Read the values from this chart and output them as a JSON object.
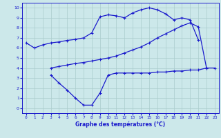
{
  "title": "Graphe des températures (°C)",
  "bg_color": "#cce8ea",
  "grid_color": "#aacccc",
  "line_color": "#1a1acc",
  "xlim": [
    -0.5,
    23.5
  ],
  "ylim": [
    -0.5,
    10.5
  ],
  "yticks": [
    0,
    1,
    2,
    3,
    4,
    5,
    6,
    7,
    8,
    9,
    10
  ],
  "xticks": [
    0,
    1,
    2,
    3,
    4,
    5,
    6,
    7,
    8,
    9,
    10,
    11,
    12,
    13,
    14,
    15,
    16,
    17,
    18,
    19,
    20,
    21,
    22,
    23
  ],
  "curve_top_x": [
    0,
    1,
    2,
    3,
    4,
    5,
    6,
    7,
    8,
    9,
    10,
    11,
    12,
    13,
    14,
    15,
    16,
    17,
    18,
    19,
    20,
    21
  ],
  "curve_top_y": [
    6.5,
    6.0,
    6.3,
    6.5,
    6.6,
    6.75,
    6.85,
    7.0,
    7.5,
    9.1,
    9.3,
    9.2,
    9.0,
    9.5,
    9.8,
    10.0,
    9.8,
    9.4,
    8.8,
    9.0,
    8.8,
    6.8
  ],
  "curve_mid_x": [
    3,
    4,
    5,
    6,
    7,
    8,
    9,
    10,
    11,
    12,
    13,
    14,
    15,
    16,
    17,
    18,
    19,
    20,
    21,
    22,
    23
  ],
  "curve_mid_y": [
    4.0,
    4.15,
    4.3,
    4.45,
    4.55,
    4.7,
    4.85,
    5.0,
    5.2,
    5.5,
    5.8,
    6.1,
    6.5,
    7.0,
    7.4,
    7.8,
    8.2,
    8.5,
    8.1,
    4.0,
    4.0
  ],
  "curve_bot_x": [
    3,
    4,
    5,
    6,
    7,
    8,
    9,
    10,
    11,
    12,
    13,
    14,
    15,
    16,
    17,
    18,
    19,
    20,
    21,
    22
  ],
  "curve_bot_y": [
    3.3,
    2.5,
    1.8,
    1.0,
    0.3,
    0.3,
    1.5,
    3.3,
    3.5,
    3.5,
    3.5,
    3.5,
    3.5,
    3.6,
    3.6,
    3.7,
    3.7,
    3.8,
    3.8,
    4.0
  ]
}
